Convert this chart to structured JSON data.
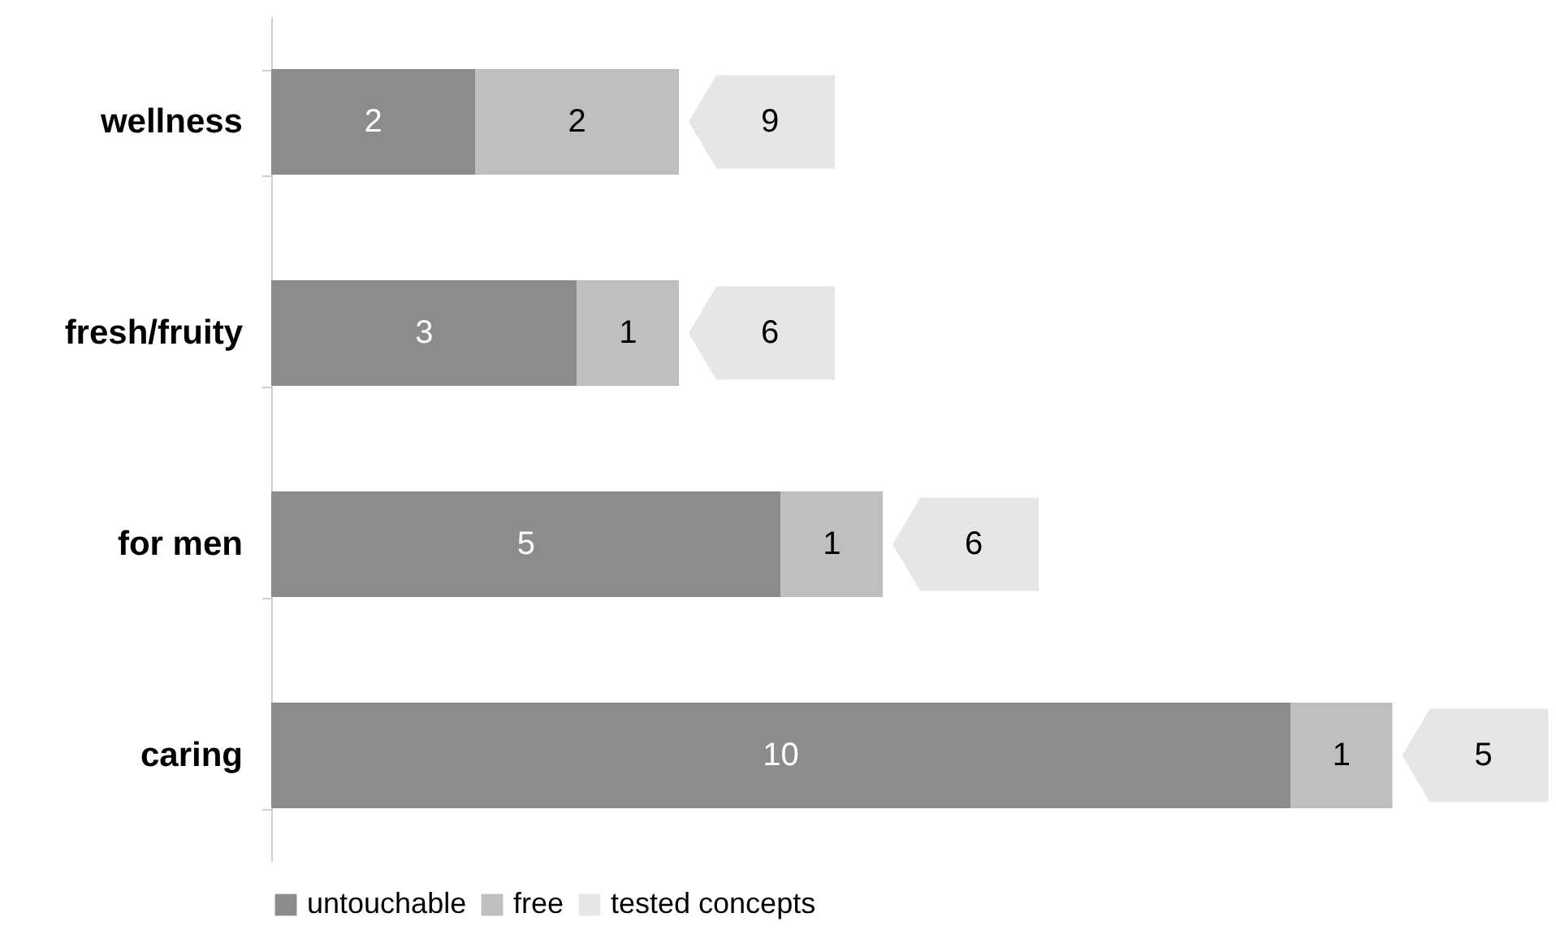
{
  "chart_data": {
    "type": "bar",
    "orientation": "horizontal",
    "stacked": true,
    "data_labels": true,
    "legend": "bottom",
    "categories": [
      "wellness",
      "fresh/fruity",
      "for men",
      "caring"
    ],
    "series": [
      {
        "name": "untouchable",
        "color": "#8c8c8c",
        "values": [
          2,
          3,
          5,
          10
        ]
      },
      {
        "name": "free",
        "color": "#bfbfbf",
        "values": [
          2,
          1,
          1,
          1
        ]
      },
      {
        "name": "tested concepts",
        "color": "#e6e6e6",
        "values": [
          null,
          null,
          null,
          null
        ]
      }
    ],
    "annotations": [
      "9",
      "6",
      "6",
      "5"
    ]
  }
}
